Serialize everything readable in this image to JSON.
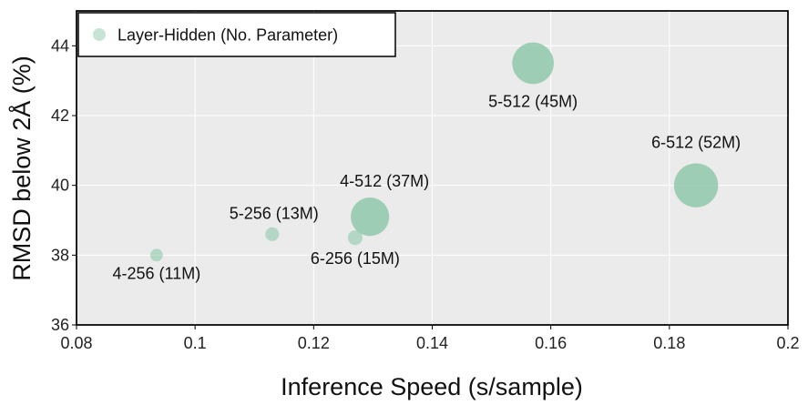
{
  "chart_data": {
    "type": "scatter",
    "xlabel": "Inference Speed (s/sample)",
    "ylabel": "RMSD below 2Å (%)",
    "xlim": [
      0.08,
      0.2
    ],
    "ylim": [
      36,
      45
    ],
    "xticks": [
      "0.08",
      "0.1",
      "0.12",
      "0.14",
      "0.16",
      "0.18",
      "0.2"
    ],
    "yticks": [
      "36",
      "38",
      "40",
      "42",
      "44"
    ],
    "grid": true,
    "legend": {
      "position": "top-left",
      "label": "Layer-Hidden (No. Parameter)"
    },
    "marker_color": "#8fc9ab",
    "points": [
      {
        "label": "4-256 (11M)",
        "x": 0.0935,
        "y": 38.0,
        "params_m": 11
      },
      {
        "label": "5-256 (13M)",
        "x": 0.113,
        "y": 38.6,
        "params_m": 13
      },
      {
        "label": "6-256 (15M)",
        "x": 0.127,
        "y": 38.5,
        "params_m": 15
      },
      {
        "label": "4-512 (37M)",
        "x": 0.1295,
        "y": 39.1,
        "params_m": 37
      },
      {
        "label": "5-512 (45M)",
        "x": 0.157,
        "y": 43.5,
        "params_m": 45
      },
      {
        "label": "6-512 (52M)",
        "x": 0.1845,
        "y": 40.0,
        "params_m": 52
      }
    ]
  }
}
